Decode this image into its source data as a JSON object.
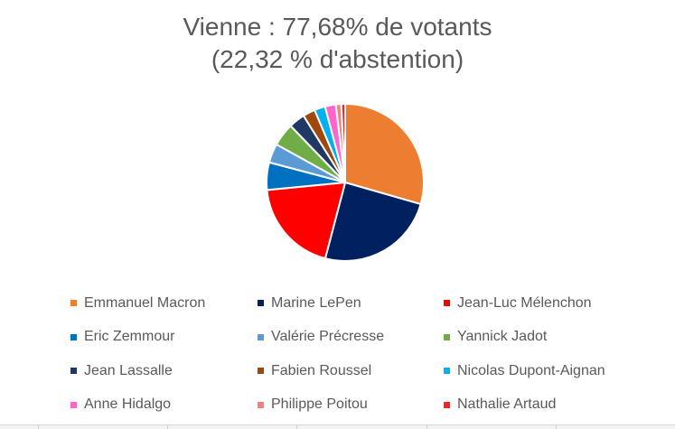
{
  "title": {
    "line1": "Vienne : 77,68% de votants",
    "line2": "(22,32 % d'abstention)"
  },
  "chart_data": {
    "type": "pie",
    "title": "Vienne : 77,68% de votants (22,32 % d'abstention)",
    "start_angle_deg": 0,
    "direction": "clockwise",
    "legend_position": "bottom",
    "categories": [
      "Emmanuel Macron",
      "Marine LePen",
      "Jean-Luc Mélenchon",
      "Eric Zemmour",
      "Valérie Précresse",
      "Yannick Jadot",
      "Jean Lassalle",
      "Fabien Roussel",
      "Nicolas Dupont-Aignan",
      "Anne Hidalgo",
      "Philippe Poitou",
      "Nathalie Artaud"
    ],
    "values": [
      29.2,
      24.4,
      19.2,
      5.6,
      3.9,
      4.7,
      3.3,
      2.5,
      2.2,
      2.2,
      1.1,
      0.8
    ],
    "colors": [
      "#ED7D31",
      "#002060",
      "#FF0000",
      "#0070C0",
      "#5B9BD5",
      "#70AD47",
      "#203864",
      "#9E480E",
      "#00B0F0",
      "#FF66CC",
      "#F4817E",
      "#FF1F1F"
    ]
  },
  "legend": {
    "rows": [
      [
        {
          "label": "Emmanuel Macron",
          "color": "#ED7D31"
        },
        {
          "label": "Marine LePen",
          "color": "#002060"
        },
        {
          "label": "Jean-Luc Mélenchon",
          "color": "#FF0000"
        }
      ],
      [
        {
          "label": "Eric Zemmour",
          "color": "#0070C0"
        },
        {
          "label": "Valérie Précresse",
          "color": "#5B9BD5"
        },
        {
          "label": "Yannick Jadot",
          "color": "#70AD47"
        }
      ],
      [
        {
          "label": "Jean Lassalle",
          "color": "#203864"
        },
        {
          "label": "Fabien Roussel",
          "color": "#9E480E"
        },
        {
          "label": "Nicolas Dupont-Aignan",
          "color": "#00B0F0"
        }
      ],
      [
        {
          "label": "Anne Hidalgo",
          "color": "#FF66CC"
        },
        {
          "label": "Philippe Poitou",
          "color": "#F4817E"
        },
        {
          "label": "Nathalie Artaud",
          "color": "#FF1F1F"
        }
      ]
    ]
  }
}
